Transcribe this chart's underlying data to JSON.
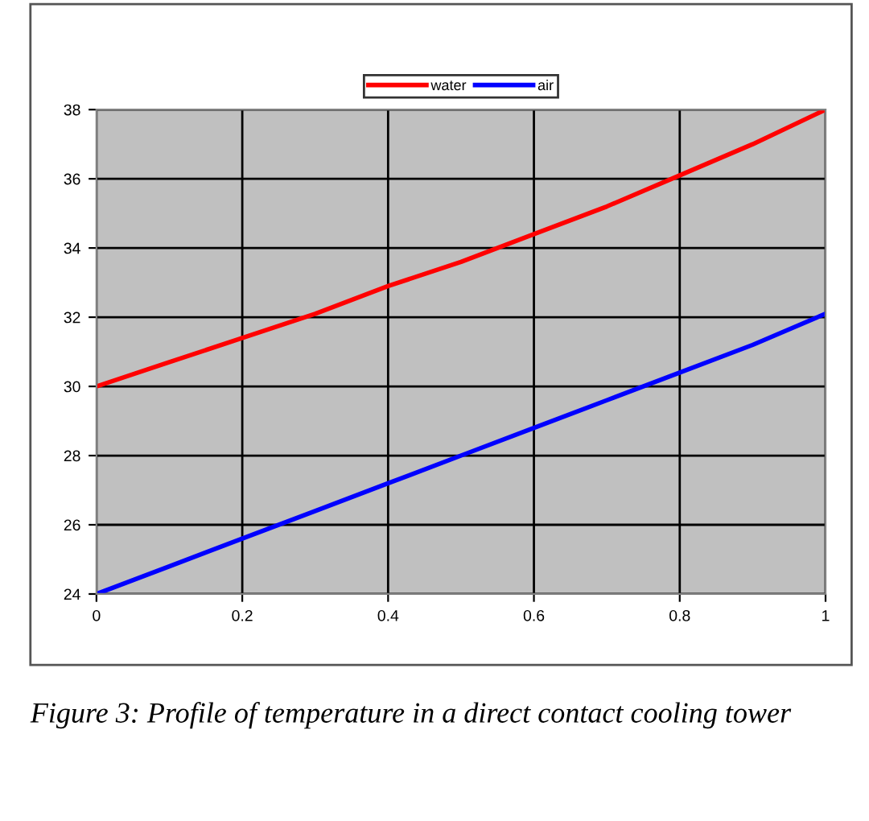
{
  "chart_data": {
    "type": "line",
    "x": [
      0,
      0.1,
      0.2,
      0.3,
      0.4,
      0.5,
      0.6,
      0.7,
      0.8,
      0.9,
      1
    ],
    "series": [
      {
        "name": "water",
        "color": "#ff0000",
        "values": [
          30,
          30.7,
          31.4,
          32.1,
          32.9,
          33.6,
          34.4,
          35.2,
          36.1,
          37.0,
          38
        ]
      },
      {
        "name": "air",
        "color": "#0000ff",
        "values": [
          24,
          24.8,
          25.6,
          26.4,
          27.2,
          28.0,
          28.8,
          29.6,
          30.4,
          31.2,
          32.1
        ]
      }
    ],
    "xlim": [
      0,
      1
    ],
    "ylim": [
      24,
      38
    ],
    "xticks": [
      0,
      0.2,
      0.4,
      0.6,
      0.8,
      1
    ],
    "yticks": [
      24,
      26,
      28,
      30,
      32,
      34,
      36,
      38
    ],
    "grid": true,
    "legend": "top",
    "marker": "none",
    "line_style": "solid",
    "annotations": [
      "Figure 3: Profile of temperature in a direct contact cooling tower"
    ]
  }
}
